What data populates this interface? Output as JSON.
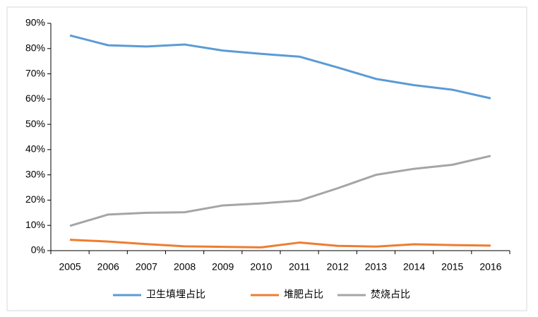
{
  "chart_data": {
    "type": "line",
    "categories": [
      "2005",
      "2006",
      "2007",
      "2008",
      "2009",
      "2010",
      "2011",
      "2012",
      "2013",
      "2014",
      "2015",
      "2016"
    ],
    "series": [
      {
        "name": "卫生填埋占比",
        "color": "#5b9bd5",
        "values": [
          85.2,
          81.3,
          80.8,
          81.6,
          79.2,
          77.9,
          76.8,
          72.5,
          68.0,
          65.5,
          63.7,
          60.3
        ]
      },
      {
        "name": "堆肥占比",
        "color": "#ed7d31",
        "values": [
          4.3,
          3.6,
          2.6,
          1.7,
          1.5,
          1.3,
          3.2,
          1.9,
          1.6,
          2.5,
          2.2,
          2.0
        ]
      },
      {
        "name": "焚烧占比",
        "color": "#a5a5a5",
        "values": [
          9.8,
          14.3,
          15.0,
          15.2,
          17.9,
          18.7,
          19.8,
          24.7,
          30.0,
          32.4,
          34.0,
          37.5
        ]
      }
    ],
    "ylim": [
      0,
      90
    ],
    "yticks": [
      {
        "value": 0,
        "label": "0%"
      },
      {
        "value": 10,
        "label": "10%"
      },
      {
        "value": 20,
        "label": "20%"
      },
      {
        "value": 30,
        "label": "30%"
      },
      {
        "value": 40,
        "label": "40%"
      },
      {
        "value": 50,
        "label": "50%"
      },
      {
        "value": 60,
        "label": "60%"
      },
      {
        "value": 70,
        "label": "70%"
      },
      {
        "value": 80,
        "label": "80%"
      },
      {
        "value": 90,
        "label": "90%"
      }
    ],
    "legend": "bottom"
  }
}
